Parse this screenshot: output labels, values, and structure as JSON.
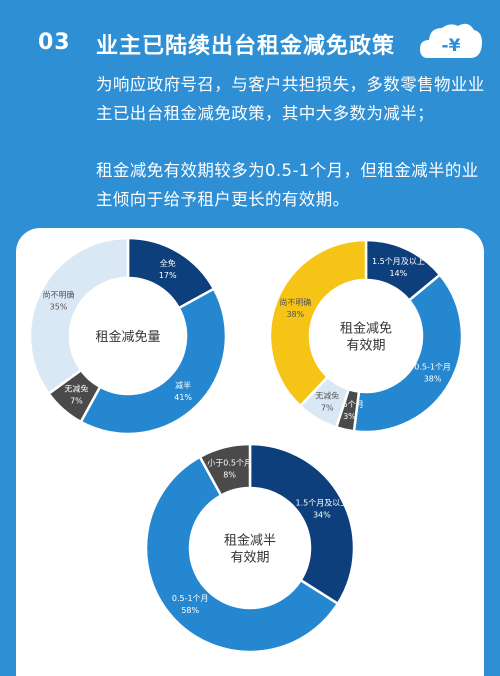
{
  "header": {
    "number": "03",
    "title": "业主已陆续出台租金减免政策",
    "badge_text": "-¥",
    "para1": "为响应政府号召，与客户共担损失，多数零售物业业主已出台租金减免政策，其中大多数为减半；",
    "para2": "租金减免有效期较多为0.5-1个月，但租金减半的业主倾向于给予租户更长的有效期。"
  },
  "colors": {
    "background": "#2E8FD4",
    "navy": "#0D3F7C",
    "blue": "#2487CF",
    "light": "#DAE8F5",
    "dark": "#4A4A4A",
    "yellow": "#F6C416"
  },
  "chart_data": [
    {
      "type": "pie",
      "center_label": "租金减免量",
      "slices": [
        {
          "label": "全免",
          "value": 17,
          "display": "17%",
          "color": "#0D3F7C"
        },
        {
          "label": "减半",
          "value": 41,
          "display": "41%",
          "color": "#2487CF"
        },
        {
          "label": "无减免",
          "value": 7,
          "display": "7%",
          "color": "#4A4A4A"
        },
        {
          "label": "尚不明确",
          "value": 35,
          "display": "35%",
          "color": "#DAE8F5"
        }
      ]
    },
    {
      "type": "pie",
      "center_label": "租金减免\n有效期",
      "slices": [
        {
          "label": "1.5个月及以上",
          "value": 14,
          "display": "14%",
          "color": "#0D3F7C"
        },
        {
          "label": "0.5-1个月",
          "value": 38,
          "display": "38%",
          "color": "#2487CF"
        },
        {
          "label": "0.5个月",
          "value": 3,
          "display": "3%",
          "color": "#4A4A4A"
        },
        {
          "label": "无减免",
          "value": 7,
          "display": "7%",
          "color": "#DAE8F5"
        },
        {
          "label": "尚不明确",
          "value": 38,
          "display": "38%",
          "color": "#F6C416"
        }
      ]
    },
    {
      "type": "pie",
      "center_label": "租金减半\n有效期",
      "slices": [
        {
          "label": "1.5个月及以上",
          "value": 34,
          "display": "34%",
          "color": "#0D3F7C"
        },
        {
          "label": "0.5-1个月",
          "value": 58,
          "display": "58%",
          "color": "#2487CF"
        },
        {
          "label": "小于0.5个月",
          "value": 8,
          "display": "8%",
          "color": "#4A4A4A"
        }
      ]
    }
  ]
}
